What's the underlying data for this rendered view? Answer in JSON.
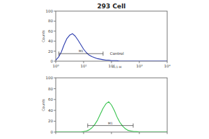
{
  "chart_data": [
    {
      "type": "line",
      "title": "293 Cell",
      "x_label": "FL1-H",
      "y_label": "Counts",
      "log": "x",
      "color": "#2b3cae",
      "x": [
        1,
        1.26,
        1.58,
        2,
        2.51,
        3.16,
        3.98,
        5.01,
        6.31,
        7.94,
        10,
        12.6,
        15.8,
        20,
        25.1,
        31.6,
        39.8,
        50.1,
        63.1,
        79.4,
        100,
        126,
        158,
        200,
        251,
        316,
        398,
        501,
        631,
        794,
        1000,
        1259,
        1585,
        1995,
        2512,
        3162,
        3981,
        5012,
        6310,
        7943,
        10000
      ],
      "values": [
        2,
        8,
        18,
        33,
        45,
        52,
        55,
        50,
        42,
        33,
        24,
        17,
        12,
        9,
        7,
        5,
        4,
        3,
        2,
        2,
        1,
        1,
        1,
        0,
        0,
        0,
        0,
        0,
        0,
        0,
        0,
        0,
        0,
        0,
        0,
        0,
        0,
        0,
        0,
        0,
        0
      ],
      "xlim": [
        1,
        10000
      ],
      "xticks": [
        {
          "value": 1,
          "label": "10⁰"
        },
        {
          "value": 10,
          "label": "10¹"
        },
        {
          "value": 100,
          "label": "10²"
        },
        {
          "value": 1000,
          "label": "10³"
        },
        {
          "value": 10000,
          "label": "10⁴"
        }
      ],
      "ylim": [
        0,
        100
      ],
      "yticks": [
        0,
        20,
        40,
        60,
        80,
        100
      ],
      "markers": [
        {
          "label": "M1",
          "xmin": 1.3,
          "xmax": 50,
          "y": 15
        }
      ],
      "annotations": [
        {
          "text": "Control",
          "x": 70,
          "y": 15
        }
      ]
    },
    {
      "type": "line",
      "y_label": "Counts",
      "log": "x",
      "color": "#35c24c",
      "tick_labels": "y",
      "x": [
        1,
        1.26,
        1.58,
        2,
        2.51,
        3.16,
        3.98,
        5.01,
        6.31,
        7.94,
        10,
        12.6,
        15.8,
        20,
        25.1,
        31.6,
        39.8,
        50.1,
        63.1,
        79.4,
        100,
        126,
        158,
        200,
        251,
        316,
        398,
        501,
        631,
        794,
        1000,
        1259,
        1585,
        1995,
        2512,
        3162,
        3981,
        5012,
        6310,
        7943,
        10000
      ],
      "values": [
        0,
        0,
        0,
        0,
        0,
        0,
        0,
        0,
        0,
        0,
        1,
        2,
        4,
        8,
        14,
        22,
        33,
        44,
        52,
        56,
        50,
        40,
        28,
        18,
        11,
        6,
        3,
        2,
        1,
        1,
        0,
        0,
        0,
        0,
        0,
        0,
        0,
        0,
        0,
        0,
        0
      ],
      "xlim": [
        1,
        10000
      ],
      "xticks": [
        {
          "value": 1,
          "label": "10⁰"
        },
        {
          "value": 10,
          "label": "10¹"
        },
        {
          "value": 100,
          "label": "10²"
        },
        {
          "value": 1000,
          "label": "10³"
        },
        {
          "value": 10000,
          "label": "10⁴"
        }
      ],
      "ylim": [
        0,
        100
      ],
      "yticks": [
        0,
        20,
        40,
        60,
        80,
        100
      ],
      "markers": [
        {
          "label": "M1",
          "xmin": 14,
          "xmax": 600,
          "y": 12
        }
      ]
    }
  ]
}
